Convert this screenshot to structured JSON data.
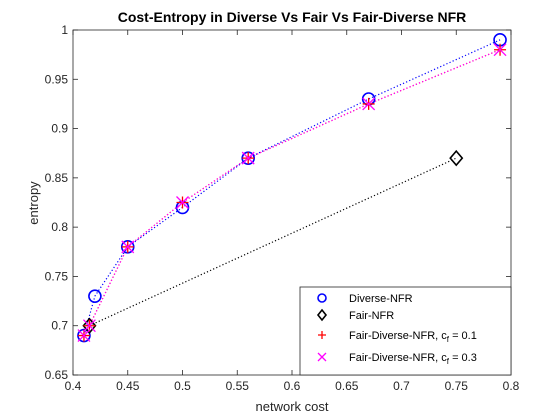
{
  "chart_data": {
    "type": "line",
    "title": "Cost-Entropy in Diverse Vs Fair Vs Fair-Diverse NFR",
    "xlabel": "network cost",
    "ylabel": "entropy",
    "xlim": [
      0.4,
      0.8
    ],
    "ylim": [
      0.65,
      1.0
    ],
    "xticks": [
      "0.4",
      "0.45",
      "0.5",
      "0.55",
      "0.6",
      "0.65",
      "0.7",
      "0.75",
      "0.8"
    ],
    "yticks": [
      "0.65",
      "0.7",
      "0.75",
      "0.8",
      "0.85",
      "0.9",
      "0.95",
      "1"
    ],
    "grid": false,
    "legend_position": "bottom-right",
    "series": [
      {
        "name": "Diverse-NFR",
        "marker": "circle",
        "color": "#0000ff",
        "x": [
          0.41,
          0.42,
          0.45,
          0.5,
          0.56,
          0.67,
          0.79
        ],
        "y": [
          0.69,
          0.73,
          0.78,
          0.82,
          0.87,
          0.93,
          0.99
        ]
      },
      {
        "name": "Fair-NFR",
        "marker": "diamond",
        "color": "#000000",
        "x": [
          0.415,
          0.75
        ],
        "y": [
          0.7,
          0.87
        ]
      },
      {
        "name": "Fair-Diverse-NFR, c",
        "subscript": "f",
        "suffix": " = 0.1",
        "marker": "plus",
        "color": "#ff0000",
        "x": [
          0.41,
          0.415,
          0.45,
          0.5,
          0.56,
          0.67,
          0.79
        ],
        "y": [
          0.69,
          0.7,
          0.78,
          0.825,
          0.87,
          0.925,
          0.98
        ]
      },
      {
        "name": "Fair-Diverse-NFR, c",
        "subscript": "f",
        "suffix": " = 0.3",
        "marker": "x",
        "color": "#ff00ff",
        "x": [
          0.41,
          0.415,
          0.45,
          0.5,
          0.56,
          0.67,
          0.79
        ],
        "y": [
          0.69,
          0.7,
          0.78,
          0.825,
          0.87,
          0.925,
          0.98
        ]
      }
    ]
  }
}
